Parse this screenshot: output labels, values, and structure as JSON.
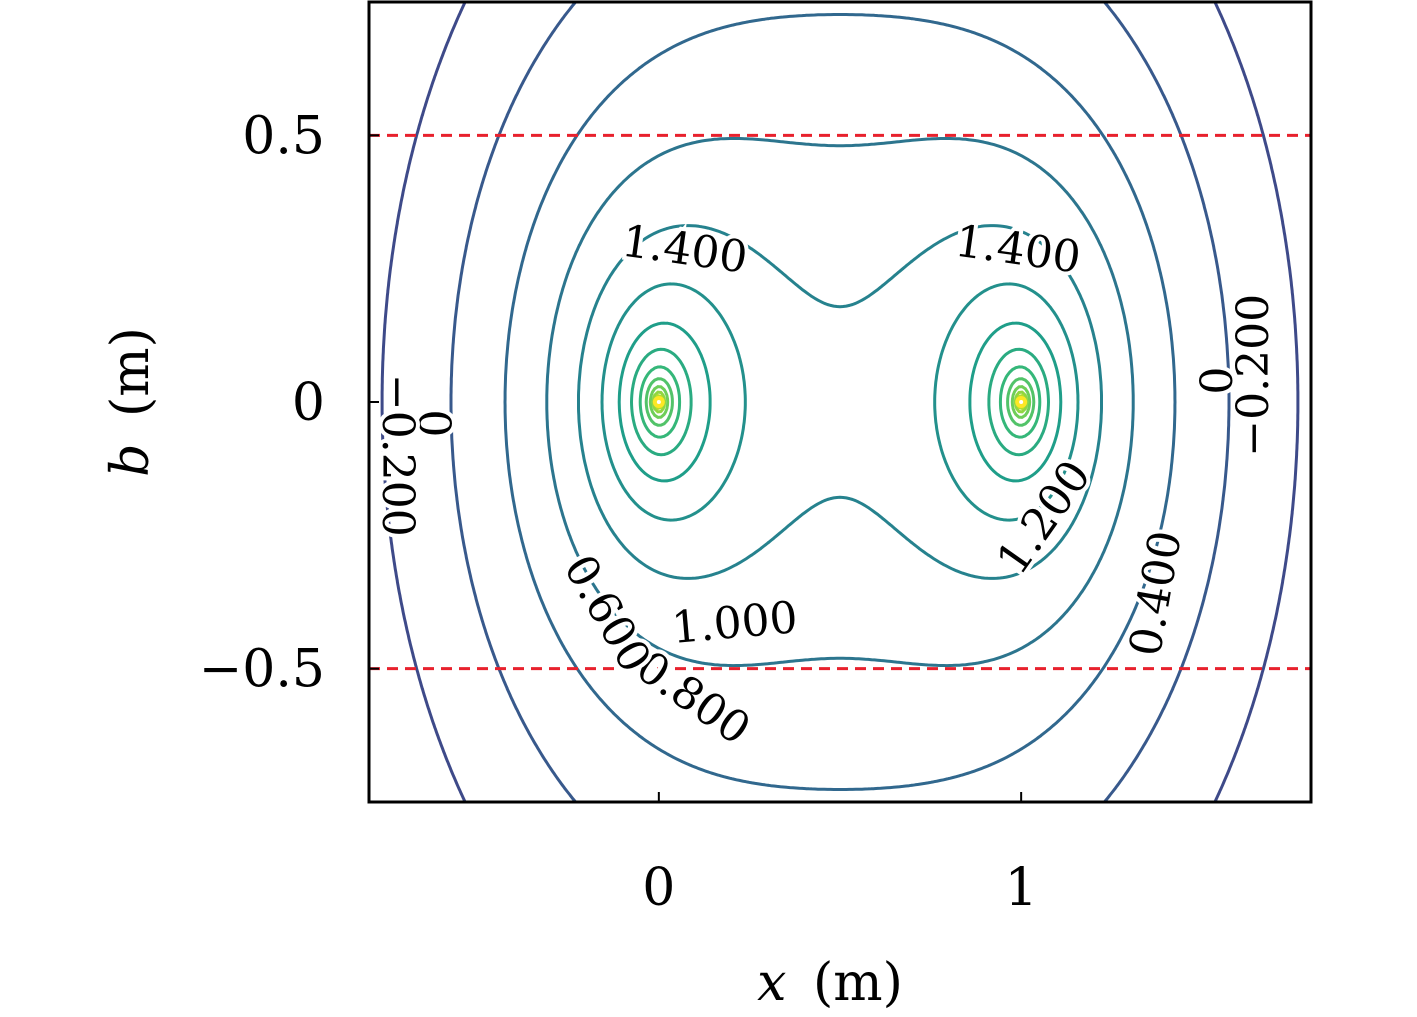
{
  "chart_data": {
    "type": "contour",
    "xlabel_var": "x",
    "xlabel_unit": "(m)",
    "ylabel_var": "b",
    "ylabel_unit": "(m)",
    "xlim": [
      -0.8,
      1.8
    ],
    "ylim": [
      -0.75,
      0.75
    ],
    "x_ticks": [
      0,
      1
    ],
    "x_tick_labels": [
      "0",
      "1"
    ],
    "y_ticks": [
      -0.5,
      0,
      0.5
    ],
    "y_tick_labels": [
      "−0.5",
      "0",
      "0.5"
    ],
    "sources": [
      {
        "x": 0,
        "y": 0
      },
      {
        "x": 1,
        "y": 0
      }
    ],
    "contour_levels": [
      -0.2,
      0,
      0.2,
      0.4,
      0.6,
      0.8,
      1.0,
      1.2,
      1.4,
      1.6,
      1.8,
      2.0,
      2.2,
      2.4,
      2.6,
      2.8,
      3.0,
      3.2,
      3.4
    ],
    "colormap": "viridis",
    "reference_lines": [
      {
        "y": 0.5,
        "color": "#e8212d",
        "style": "dashed"
      },
      {
        "y": -0.5,
        "color": "#e8212d",
        "style": "dashed"
      }
    ],
    "contour_labels": [
      {
        "text": "1.400",
        "x": 0.07,
        "y": 0.28,
        "angle": 8
      },
      {
        "text": "1.400",
        "x": 0.99,
        "y": 0.28,
        "angle": 8
      },
      {
        "text": "1.200",
        "x": 1.07,
        "y": -0.22,
        "angle": -55
      },
      {
        "text": "1.000",
        "x": 0.21,
        "y": -0.42,
        "angle": -5
      },
      {
        "text": "0.800",
        "x": 0.09,
        "y": -0.56,
        "angle": 35
      },
      {
        "text": "0.600",
        "x": -0.15,
        "y": -0.4,
        "angle": 60
      },
      {
        "text": "0.400",
        "x": 1.38,
        "y": -0.36,
        "angle": -80
      },
      {
        "text": "0",
        "x": 1.55,
        "y": 0.04,
        "angle": -90
      },
      {
        "text": "−0.200",
        "x": 1.65,
        "y": 0.05,
        "angle": -90
      },
      {
        "text": "0",
        "x": -0.63,
        "y": -0.04,
        "angle": 90
      },
      {
        "text": "−0.200",
        "x": -0.73,
        "y": -0.1,
        "angle": 90
      }
    ]
  }
}
